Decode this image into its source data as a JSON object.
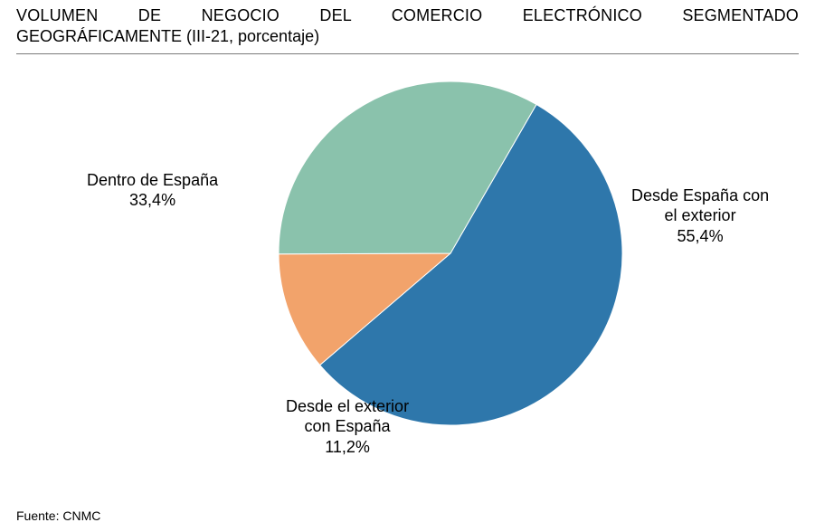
{
  "title": {
    "line1": "VOLUMEN DE NEGOCIO DEL COMERCIO ELECTRÓNICO SEGMENTADO",
    "line2": "GEOGRÁFICAMENTE (III-21, porcentaje)"
  },
  "chart": {
    "type": "pie",
    "background_color": "#ffffff",
    "radius": 190,
    "stroke": "#ffffff",
    "stroke_width": 1,
    "slices": [
      {
        "label": "Desde España con el exterior",
        "value": 55.4,
        "display": "55,4%",
        "color": "#2e77ab"
      },
      {
        "label": "Desde el exterior con España",
        "value": 11.2,
        "display": "11,2%",
        "color": "#f2a36b"
      },
      {
        "label": "Dentro de España",
        "value": 33.4,
        "display": "33,4%",
        "color": "#8ac2ac"
      }
    ],
    "start_angle_deg": -60,
    "label_fontsize": 18,
    "label_color": "#000000"
  },
  "labels_text": {
    "l0a": "Desde España con",
    "l0b": "el exterior",
    "l0c": "55,4%",
    "l1a": "Desde el exterior",
    "l1b": "con España",
    "l1c": "11,2%",
    "l2a": "Dentro de España",
    "l2b": "33,4%"
  },
  "source": "Fuente: CNMC"
}
